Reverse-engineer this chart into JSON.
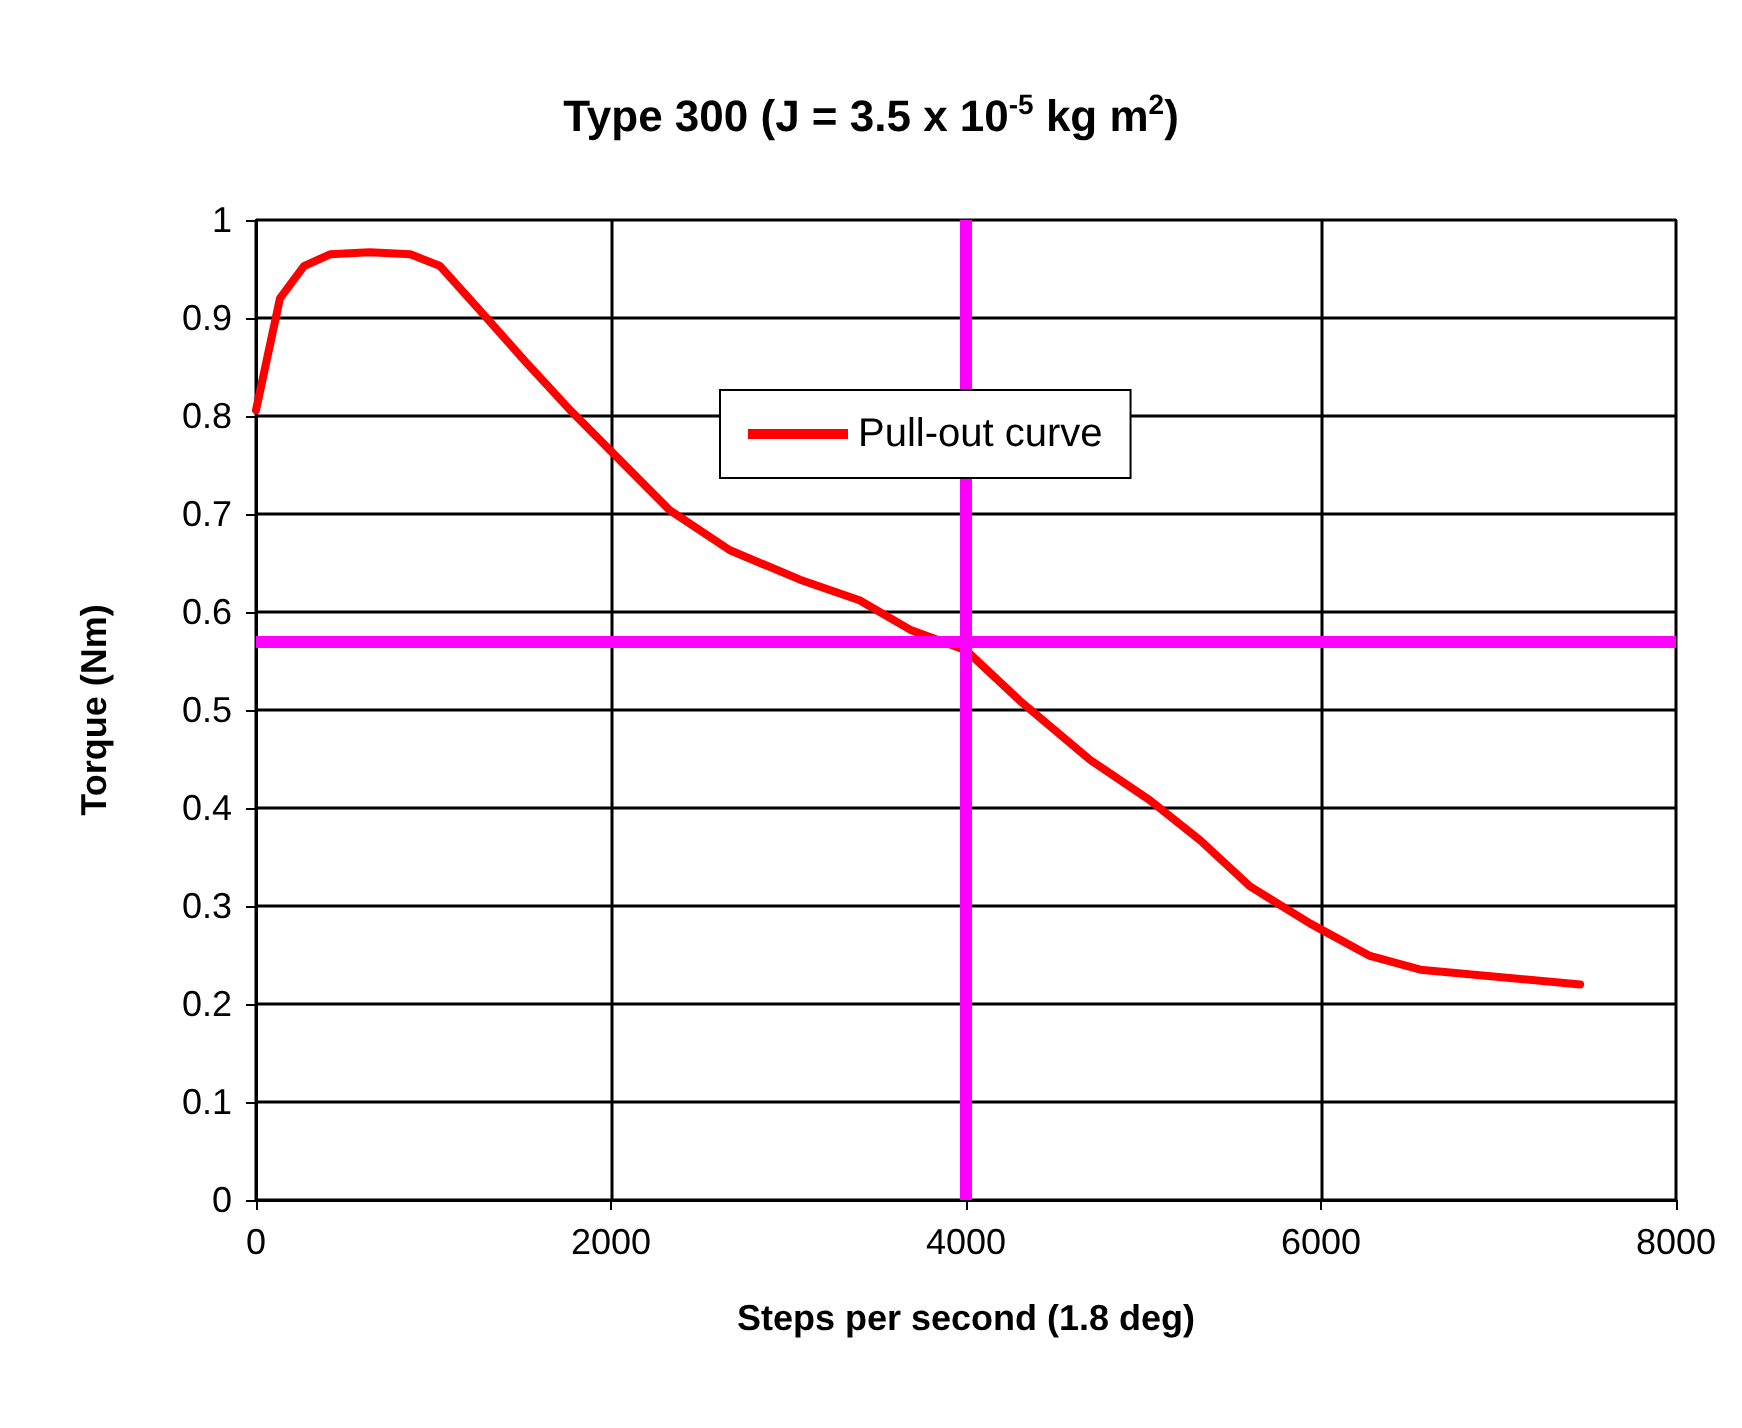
{
  "chart_data": {
    "type": "line",
    "title": "Type 300 (J = 3.5 x 10$^{-5}$ kg m$^{2}$)",
    "xlabel": "Steps per second (1.8 deg)",
    "ylabel": "Torque (Nm)",
    "x": [
      0,
      135,
      270,
      417,
      640,
      870,
      1037,
      1260,
      1510,
      1770,
      2050,
      2330,
      2670,
      3065,
      3400,
      3685,
      4000,
      4300,
      4700,
      5035,
      5320,
      5600,
      5940,
      6276,
      6560,
      7460
    ],
    "series": [
      {
        "name": "Pull-out curve",
        "color": "#ff0000",
        "values": [
          0.806,
          0.92,
          0.953,
          0.965,
          0.967,
          0.965,
          0.953,
          0.908,
          0.857,
          0.806,
          0.755,
          0.704,
          0.663,
          0.633,
          0.612,
          0.582,
          0.561,
          0.51,
          0.449,
          0.408,
          0.367,
          0.32,
          0.282,
          0.249,
          0.235,
          0.22
        ]
      }
    ],
    "xlim": [
      0,
      8000
    ],
    "xticks": [
      0,
      2000,
      4000,
      6000,
      8000
    ],
    "ylim": [
      0,
      1
    ],
    "yticks": [
      0,
      0.1,
      0.2,
      0.3,
      0.4,
      0.5,
      0.6,
      0.7,
      0.8,
      0.9,
      1
    ],
    "ref_lines": [
      {
        "axis": "x",
        "value": 4000,
        "color": "#ff00ff"
      },
      {
        "axis": "y",
        "value": 0.57,
        "color": "#ff00ff"
      }
    ],
    "grid": true,
    "legend": "top",
    "marker": "none",
    "line_style": "solid"
  }
}
